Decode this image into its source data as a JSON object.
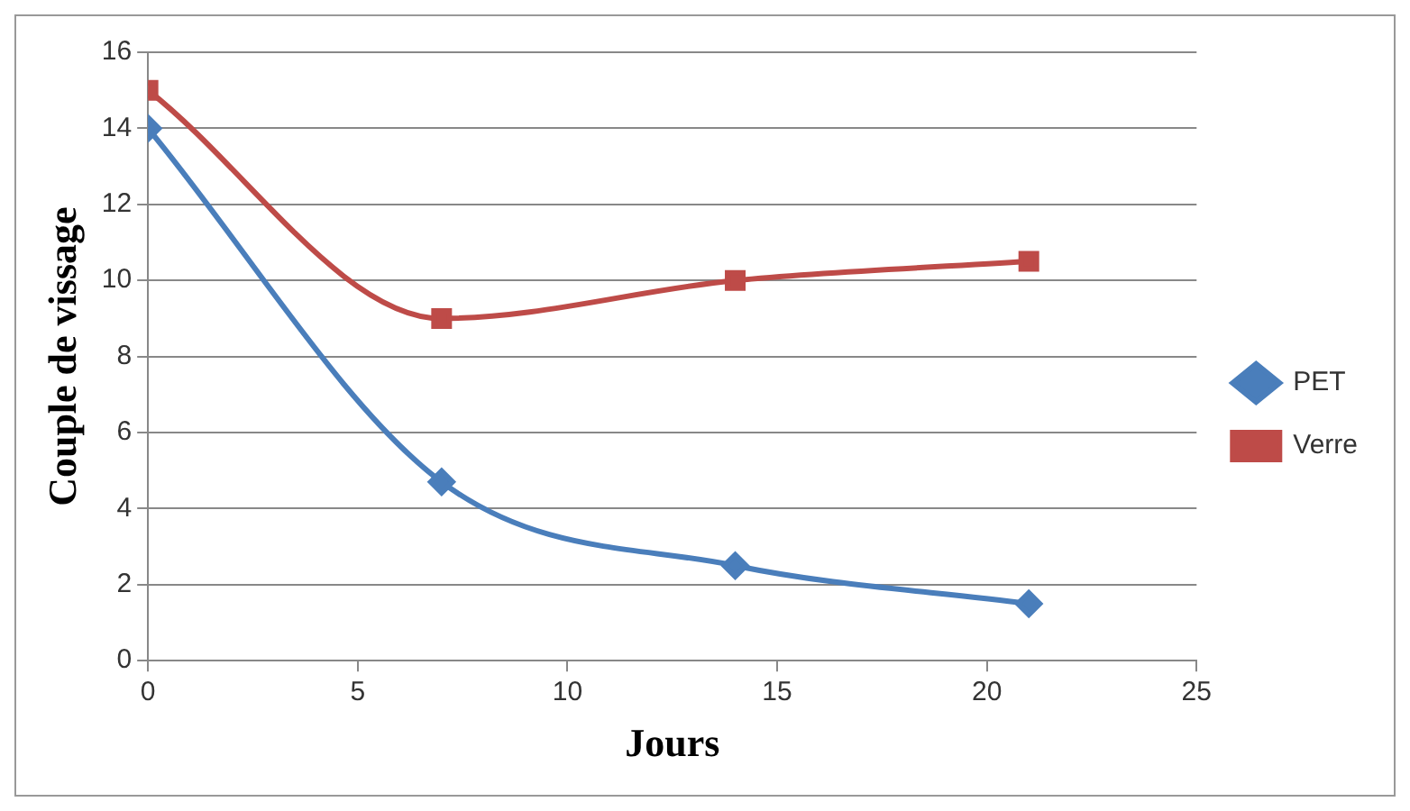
{
  "chart_data": {
    "type": "line",
    "xlabel": "Jours",
    "ylabel": "Couple de vissage",
    "x": [
      0,
      7,
      14,
      21
    ],
    "series": [
      {
        "name": "PET",
        "color": "#4a7ebb",
        "values": [
          14,
          4.7,
          2.5,
          1.5
        ],
        "marker": "diamond"
      },
      {
        "name": "Verre",
        "color": "#be4b48",
        "values": [
          15,
          9,
          10,
          10.5
        ],
        "marker": "square"
      }
    ],
    "xlim": [
      0,
      25
    ],
    "xticks": [
      0,
      5,
      10,
      15,
      20,
      25
    ],
    "ylim": [
      0,
      16
    ],
    "yticks": [
      0,
      2,
      4,
      6,
      8,
      10,
      12,
      14,
      16
    ],
    "grid": "y",
    "legend": "right",
    "line_style": "solid"
  }
}
